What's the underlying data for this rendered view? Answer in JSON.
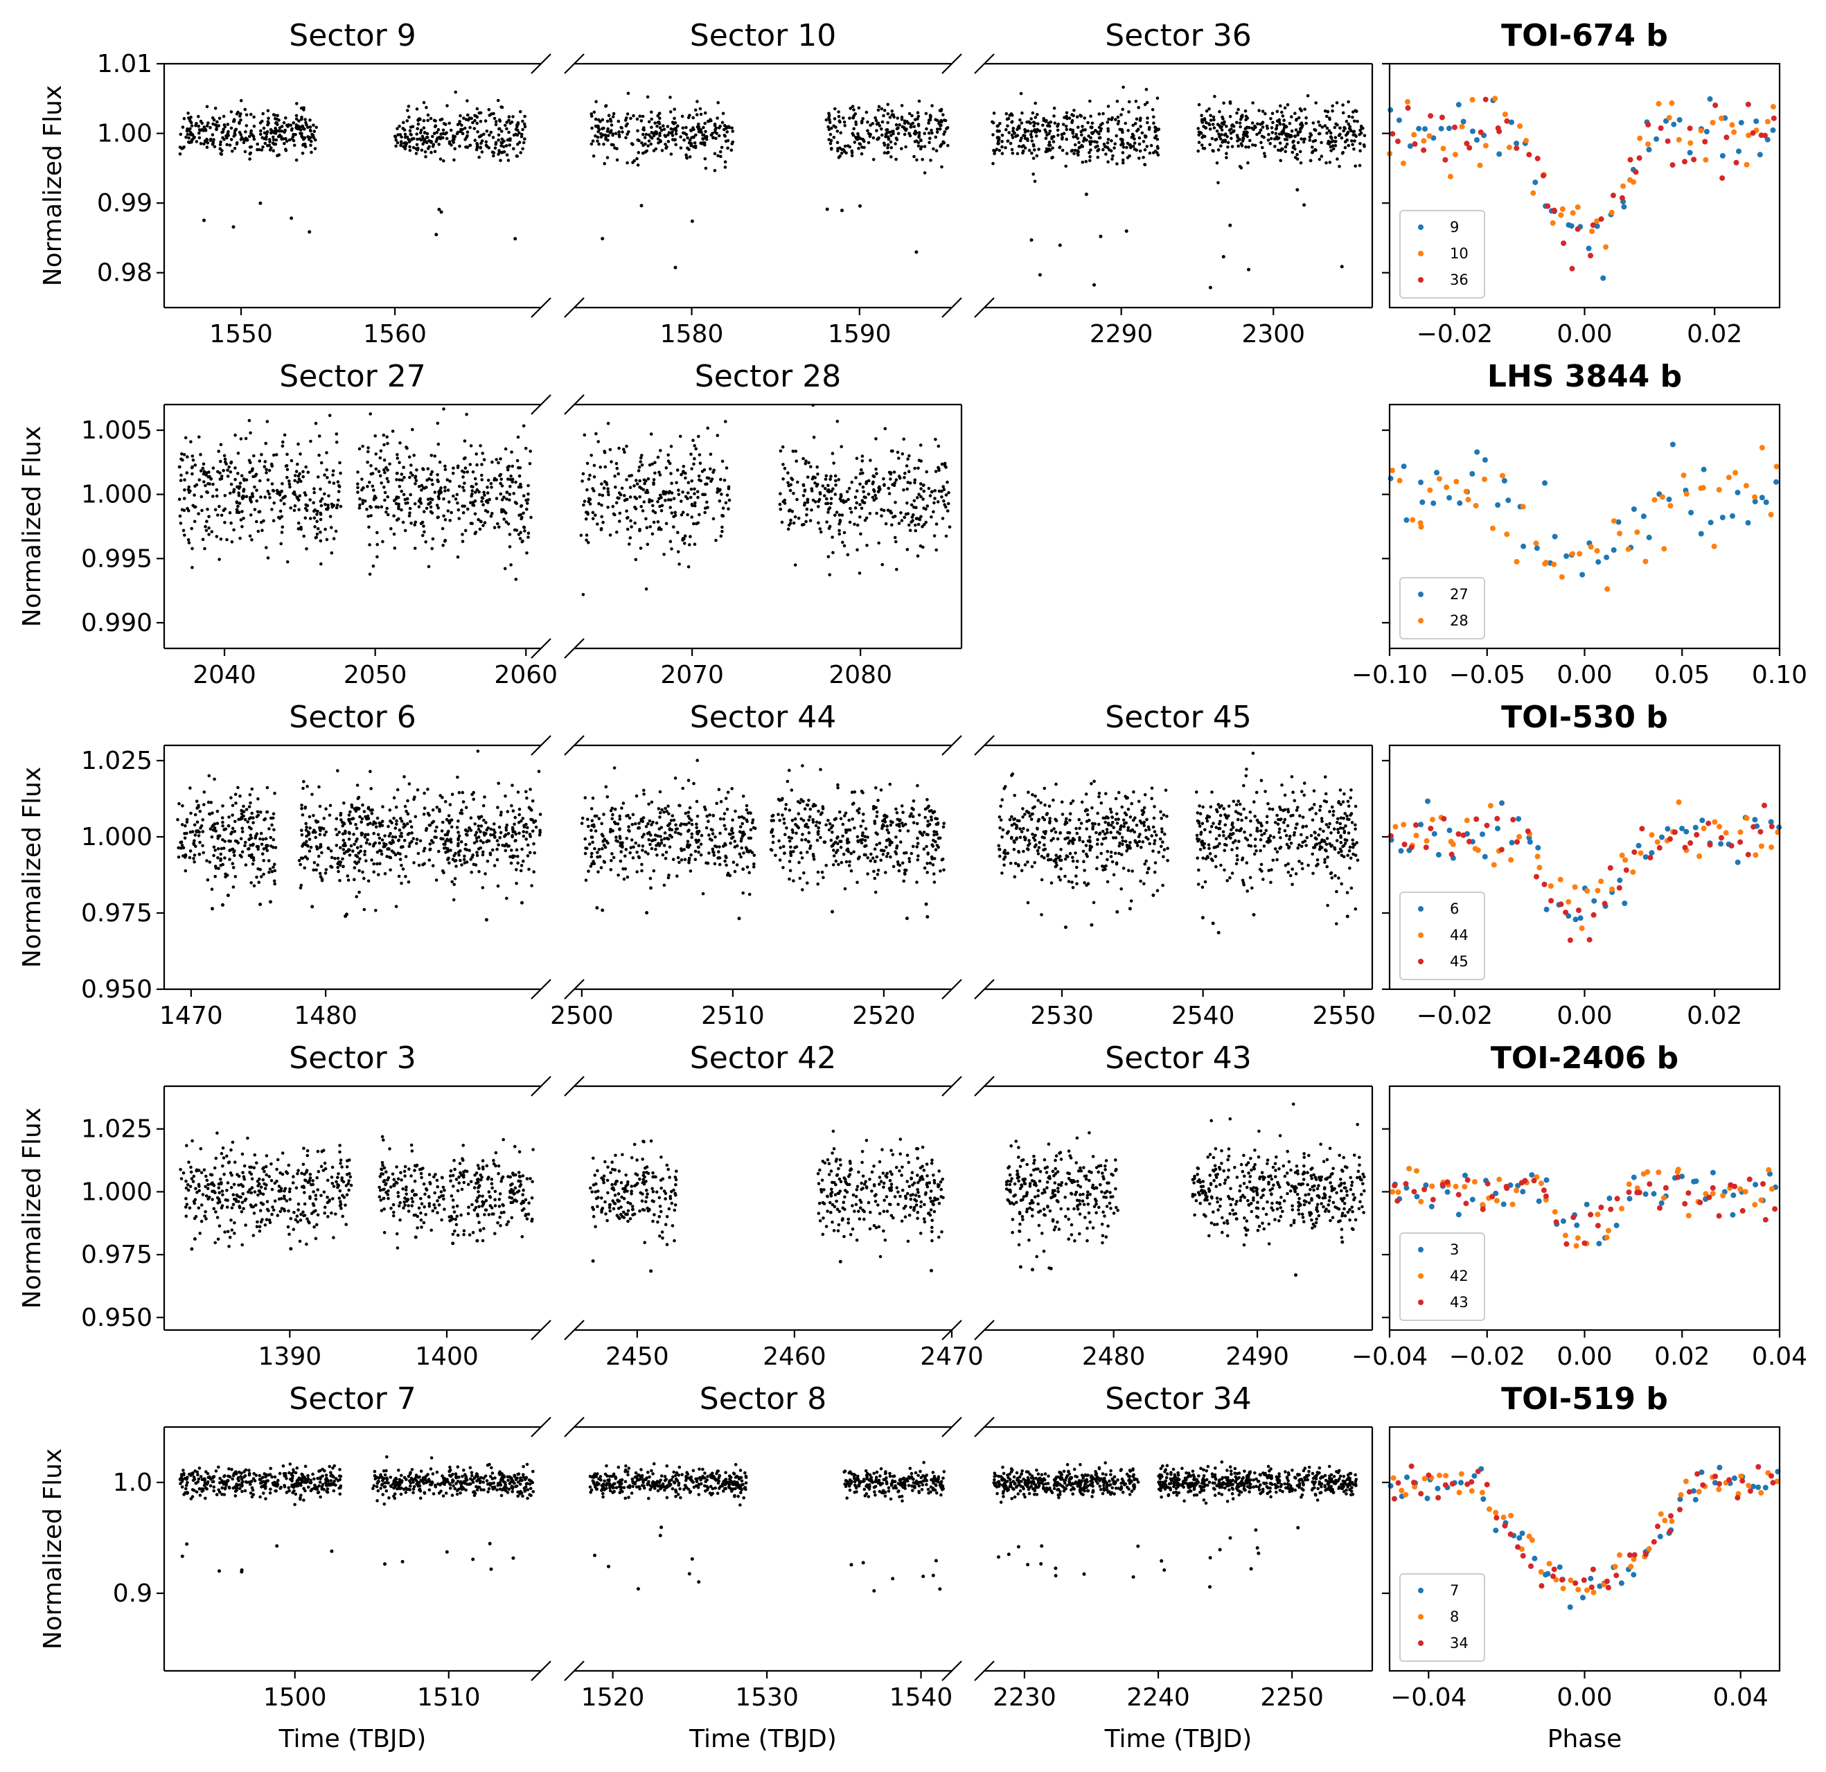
{
  "figure": {
    "id": "tess-lightcurve-grid"
  },
  "colors": {
    "sector_a": "#1f77b4",
    "sector_b": "#ff7f0e",
    "sector_c": "#d62728",
    "points": "#000000"
  },
  "labels": {
    "flux": "Normalized Flux",
    "time": "Time (TBJD)",
    "phase": "Phase"
  },
  "chart_data": [
    {
      "type": "scatter",
      "target": "TOI-674 b",
      "ylim": [
        0.975,
        1.01
      ],
      "yticks": [
        0.98,
        0.99,
        1.0,
        1.01
      ],
      "ytick_labels": [
        "0.98",
        "0.99",
        "1.00",
        "1.01"
      ],
      "sectors": [
        {
          "title": "Sector 9",
          "xlim": [
            1545,
            1569.5
          ],
          "xticks": [
            1550,
            1560
          ],
          "segments": [
            [
              1546.0,
              1554.9
            ],
            [
              1560.0,
              1568.5
            ]
          ],
          "scatter": 0.0017,
          "dips": 9,
          "dip_min": 0.984,
          "dip_max": 0.99
        },
        {
          "title": "Sector 10",
          "xlim": [
            1573,
            1595.5
          ],
          "xticks": [
            1580,
            1590
          ],
          "segments": [
            [
              1574.0,
              1582.5
            ],
            [
              1588.0,
              1595.3
            ]
          ],
          "scatter": 0.0019,
          "dips": 8,
          "dip_min": 0.98,
          "dip_max": 0.99
        },
        {
          "title": "Sector 36",
          "xlim": [
            2281,
            2306.5
          ],
          "xticks": [
            2290,
            2300
          ],
          "segments": [
            [
              2281.5,
              2292.5
            ],
            [
              2295.0,
              2306.0
            ]
          ],
          "scatter": 0.0022,
          "dips": 14,
          "dip_min": 0.976,
          "dip_max": 0.993
        }
      ],
      "phase": {
        "xlim": [
          -0.03,
          0.03
        ],
        "xticks": [
          -0.02,
          0.0,
          0.02
        ],
        "xtick_labels": [
          "−0.02",
          "0.00",
          "0.02"
        ],
        "depth": 0.014,
        "half_width": 0.0095,
        "noise": 0.0025,
        "legend": [
          "9",
          "10",
          "36"
        ]
      }
    },
    {
      "type": "scatter",
      "target": "LHS 3844 b",
      "ylim": [
        0.988,
        1.007
      ],
      "yticks": [
        0.99,
        0.995,
        1.0,
        1.005
      ],
      "ytick_labels": [
        "0.990",
        "0.995",
        "1.000",
        "1.005"
      ],
      "sectors": [
        {
          "title": "Sector 27",
          "xlim": [
            2036,
            2061
          ],
          "xticks": [
            2040,
            2050,
            2060
          ],
          "segments": [
            [
              2037.0,
              2047.8
            ],
            [
              2048.8,
              2060.4
            ]
          ],
          "scatter": 0.0022,
          "dips": 0,
          "dip_min": 0.99,
          "dip_max": 0.995
        },
        {
          "title": "Sector 28",
          "xlim": [
            2063,
            2086
          ],
          "xticks": [
            2070,
            2080
          ],
          "segments": [
            [
              2063.4,
              2072.3
            ],
            [
              2075.2,
              2085.3
            ]
          ],
          "scatter": 0.0022,
          "dips": 0,
          "dip_min": 0.99,
          "dip_max": 0.995
        }
      ],
      "phase": {
        "xlim": [
          -0.1,
          0.1
        ],
        "xticks": [
          -0.1,
          -0.05,
          0.0,
          0.05,
          0.1
        ],
        "xtick_labels": [
          "−0.10",
          "−0.05",
          "0.00",
          "0.05",
          "0.10"
        ],
        "depth": 0.0055,
        "half_width": 0.04,
        "noise": 0.0017,
        "legend": [
          "27",
          "28"
        ]
      }
    },
    {
      "type": "scatter",
      "target": "TOI-530 b",
      "ylim": [
        0.95,
        1.03
      ],
      "yticks": [
        0.95,
        0.975,
        1.0,
        1.025
      ],
      "ytick_labels": [
        "0.950",
        "0.975",
        "1.000",
        "1.025"
      ],
      "sectors": [
        {
          "title": "Sector 6",
          "xlim": [
            1468,
            1496
          ],
          "xticks": [
            1470,
            1480
          ],
          "segments": [
            [
              1469.0,
              1476.3
            ],
            [
              1478.0,
              1496.0
            ]
          ],
          "scatter": 0.0075,
          "dips": 10,
          "dip_min": 0.972,
          "dip_max": 0.985
        },
        {
          "title": "Sector 44",
          "xlim": [
            2499.5,
            2524.5
          ],
          "xticks": [
            2500,
            2510,
            2520
          ],
          "segments": [
            [
              2500.0,
              2511.5
            ],
            [
              2512.5,
              2524.0
            ]
          ],
          "scatter": 0.0075,
          "dips": 9,
          "dip_min": 0.97,
          "dip_max": 0.985
        },
        {
          "title": "Sector 45",
          "xlim": [
            2524.5,
            2552
          ],
          "xticks": [
            2530,
            2540,
            2550
          ],
          "segments": [
            [
              2525.5,
              2537.5
            ],
            [
              2539.5,
              2551.0
            ]
          ],
          "scatter": 0.0078,
          "dips": 10,
          "dip_min": 0.965,
          "dip_max": 0.982
        }
      ],
      "phase": {
        "xlim": [
          -0.03,
          0.03
        ],
        "xticks": [
          -0.02,
          0.0,
          0.02
        ],
        "xtick_labels": [
          "−0.02",
          "0.00",
          "0.02"
        ],
        "depth": 0.026,
        "half_width": 0.0085,
        "noise": 0.0045,
        "legend": [
          "6",
          "44",
          "45"
        ]
      }
    },
    {
      "type": "scatter",
      "target": "TOI-2406 b",
      "ylim": [
        0.945,
        1.042
      ],
      "yticks": [
        0.95,
        0.975,
        1.0,
        1.025
      ],
      "ytick_labels": [
        "0.950",
        "0.975",
        "1.000",
        "1.025"
      ],
      "sectors": [
        {
          "title": "Sector 3",
          "xlim": [
            1382,
            1406
          ],
          "xticks": [
            1390,
            1400
          ],
          "segments": [
            [
              1383.0,
              1394.0
            ],
            [
              1395.7,
              1405.5
            ]
          ],
          "scatter": 0.0085,
          "dips": 6,
          "dip_min": 0.975,
          "dip_max": 0.985
        },
        {
          "title": "Sector 42",
          "xlim": [
            2446,
            2470
          ],
          "xticks": [
            2450,
            2460,
            2470
          ],
          "segments": [
            [
              2447.0,
              2452.5
            ],
            [
              2461.5,
              2469.5
            ]
          ],
          "scatter": 0.0085,
          "dips": 4,
          "dip_min": 0.968,
          "dip_max": 0.98
        },
        {
          "title": "Sector 43",
          "xlim": [
            2471,
            2498
          ],
          "xticks": [
            2480,
            2490
          ],
          "segments": [
            [
              2472.5,
              2480.3
            ],
            [
              2485.5,
              2497.5
            ]
          ],
          "scatter": 0.0085,
          "dips": 5,
          "dip_min": 0.966,
          "dip_max": 0.98
        }
      ],
      "phase": {
        "xlim": [
          -0.04,
          0.04
        ],
        "xticks": [
          -0.04,
          -0.02,
          0.0,
          0.02,
          0.04
        ],
        "xtick_labels": [
          "−0.04",
          "−0.02",
          "0.00",
          "0.02",
          "0.04"
        ],
        "depth": 0.018,
        "half_width": 0.0085,
        "noise": 0.005,
        "legend": [
          "3",
          "42",
          "43"
        ]
      }
    },
    {
      "type": "scatter",
      "target": "TOI-519 b",
      "ylim": [
        0.83,
        1.05
      ],
      "yticks": [
        0.9,
        1.0
      ],
      "ytick_labels": [
        "0.9",
        "1.0"
      ],
      "sectors": [
        {
          "title": "Sector 7",
          "xlim": [
            1491.5,
            1516
          ],
          "xticks": [
            1500,
            1510
          ],
          "segments": [
            [
              1492.5,
              1503.0
            ],
            [
              1505.0,
              1515.5
            ]
          ],
          "scatter": 0.0065,
          "dips": 14,
          "dip_min": 0.91,
          "dip_max": 0.945
        },
        {
          "title": "Sector 8",
          "xlim": [
            1517.5,
            1542
          ],
          "xticks": [
            1520,
            1530,
            1540
          ],
          "segments": [
            [
              1518.5,
              1528.7
            ],
            [
              1535.0,
              1541.5
            ]
          ],
          "scatter": 0.0055,
          "dips": 16,
          "dip_min": 0.9,
          "dip_max": 0.96
        },
        {
          "title": "Sector 34",
          "xlim": [
            2227,
            2256
          ],
          "xticks": [
            2230,
            2240,
            2250
          ],
          "segments": [
            [
              2227.7,
              2238.5
            ],
            [
              2240.0,
              2254.8
            ]
          ],
          "scatter": 0.006,
          "dips": 22,
          "dip_min": 0.905,
          "dip_max": 0.96
        }
      ],
      "phase": {
        "xlim": [
          -0.05,
          0.05
        ],
        "xticks": [
          -0.04,
          0.0,
          0.04
        ],
        "xtick_labels": [
          "−0.04",
          "0.00",
          "0.04"
        ],
        "depth": 0.095,
        "half_width": 0.027,
        "noise": 0.008,
        "legend": [
          "7",
          "8",
          "34"
        ]
      }
    }
  ]
}
